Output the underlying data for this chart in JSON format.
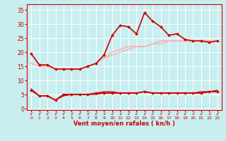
{
  "background_color": "#c8eef0",
  "grid_color": "#ffffff",
  "xlabel": "Vent moyen/en rafales ( kn/h )",
  "x_ticks": [
    0,
    1,
    2,
    3,
    4,
    5,
    6,
    7,
    8,
    9,
    10,
    11,
    12,
    13,
    14,
    15,
    16,
    17,
    18,
    19,
    20,
    21,
    22,
    23
  ],
  "ylim": [
    -0.5,
    37
  ],
  "yticks": [
    0,
    5,
    10,
    15,
    20,
    25,
    30,
    35
  ],
  "line_pink1": {
    "y": [
      19.5,
      15.5,
      15.5,
      14,
      14,
      14,
      14,
      15,
      16,
      18,
      19,
      20,
      21,
      22,
      22,
      23,
      24,
      24,
      24,
      24,
      24,
      24,
      24,
      24
    ],
    "color": "#ffaaaa",
    "linewidth": 1.0
  },
  "line_pink2": {
    "y": [
      16,
      15,
      15,
      14,
      14,
      14,
      14,
      15,
      16,
      18,
      20,
      21,
      22,
      22,
      22,
      23,
      23,
      24,
      24,
      24,
      24,
      24,
      24,
      24
    ],
    "color": "#ffaaaa",
    "linewidth": 1.0
  },
  "line_red_flat1": {
    "y": [
      6.5,
      4.5,
      4.5,
      3.0,
      4.5,
      5.0,
      5.0,
      5.0,
      5.0,
      5.5,
      5.5,
      5.5,
      5.5,
      5.5,
      6.0,
      5.5,
      5.5,
      5.5,
      5.5,
      5.5,
      5.5,
      5.5,
      6.0,
      6.0
    ],
    "color": "#cc0000",
    "linewidth": 0.9
  },
  "line_red_flat2": {
    "y": [
      7.0,
      4.5,
      4.5,
      3.0,
      5.0,
      5.0,
      5.0,
      5.0,
      5.5,
      6.0,
      6.0,
      5.5,
      5.5,
      5.5,
      6.0,
      5.5,
      5.5,
      5.5,
      5.5,
      5.5,
      5.5,
      6.0,
      6.0,
      6.5
    ],
    "color": "#cc0000",
    "linewidth": 0.9
  },
  "line_red_moyen": {
    "y": [
      6.5,
      4.5,
      4.5,
      3.0,
      5.0,
      5.0,
      5.0,
      5.0,
      5.5,
      5.5,
      5.5,
      5.5,
      5.5,
      5.5,
      6.0,
      5.5,
      5.5,
      5.5,
      5.5,
      5.5,
      5.5,
      5.5,
      6.0,
      6.0
    ],
    "color": "#cc0000",
    "marker": "D",
    "markersize": 2.0,
    "linewidth": 1.2
  },
  "line_red_rafales": {
    "y": [
      19.5,
      15.5,
      15.5,
      14,
      14,
      14,
      14,
      15,
      16,
      19,
      26,
      29.5,
      29,
      26.5,
      34,
      31,
      29,
      26,
      26.5,
      24.5,
      24,
      24,
      23.5,
      24
    ],
    "color": "#cc0000",
    "marker": "D",
    "markersize": 2.0,
    "linewidth": 1.2
  }
}
